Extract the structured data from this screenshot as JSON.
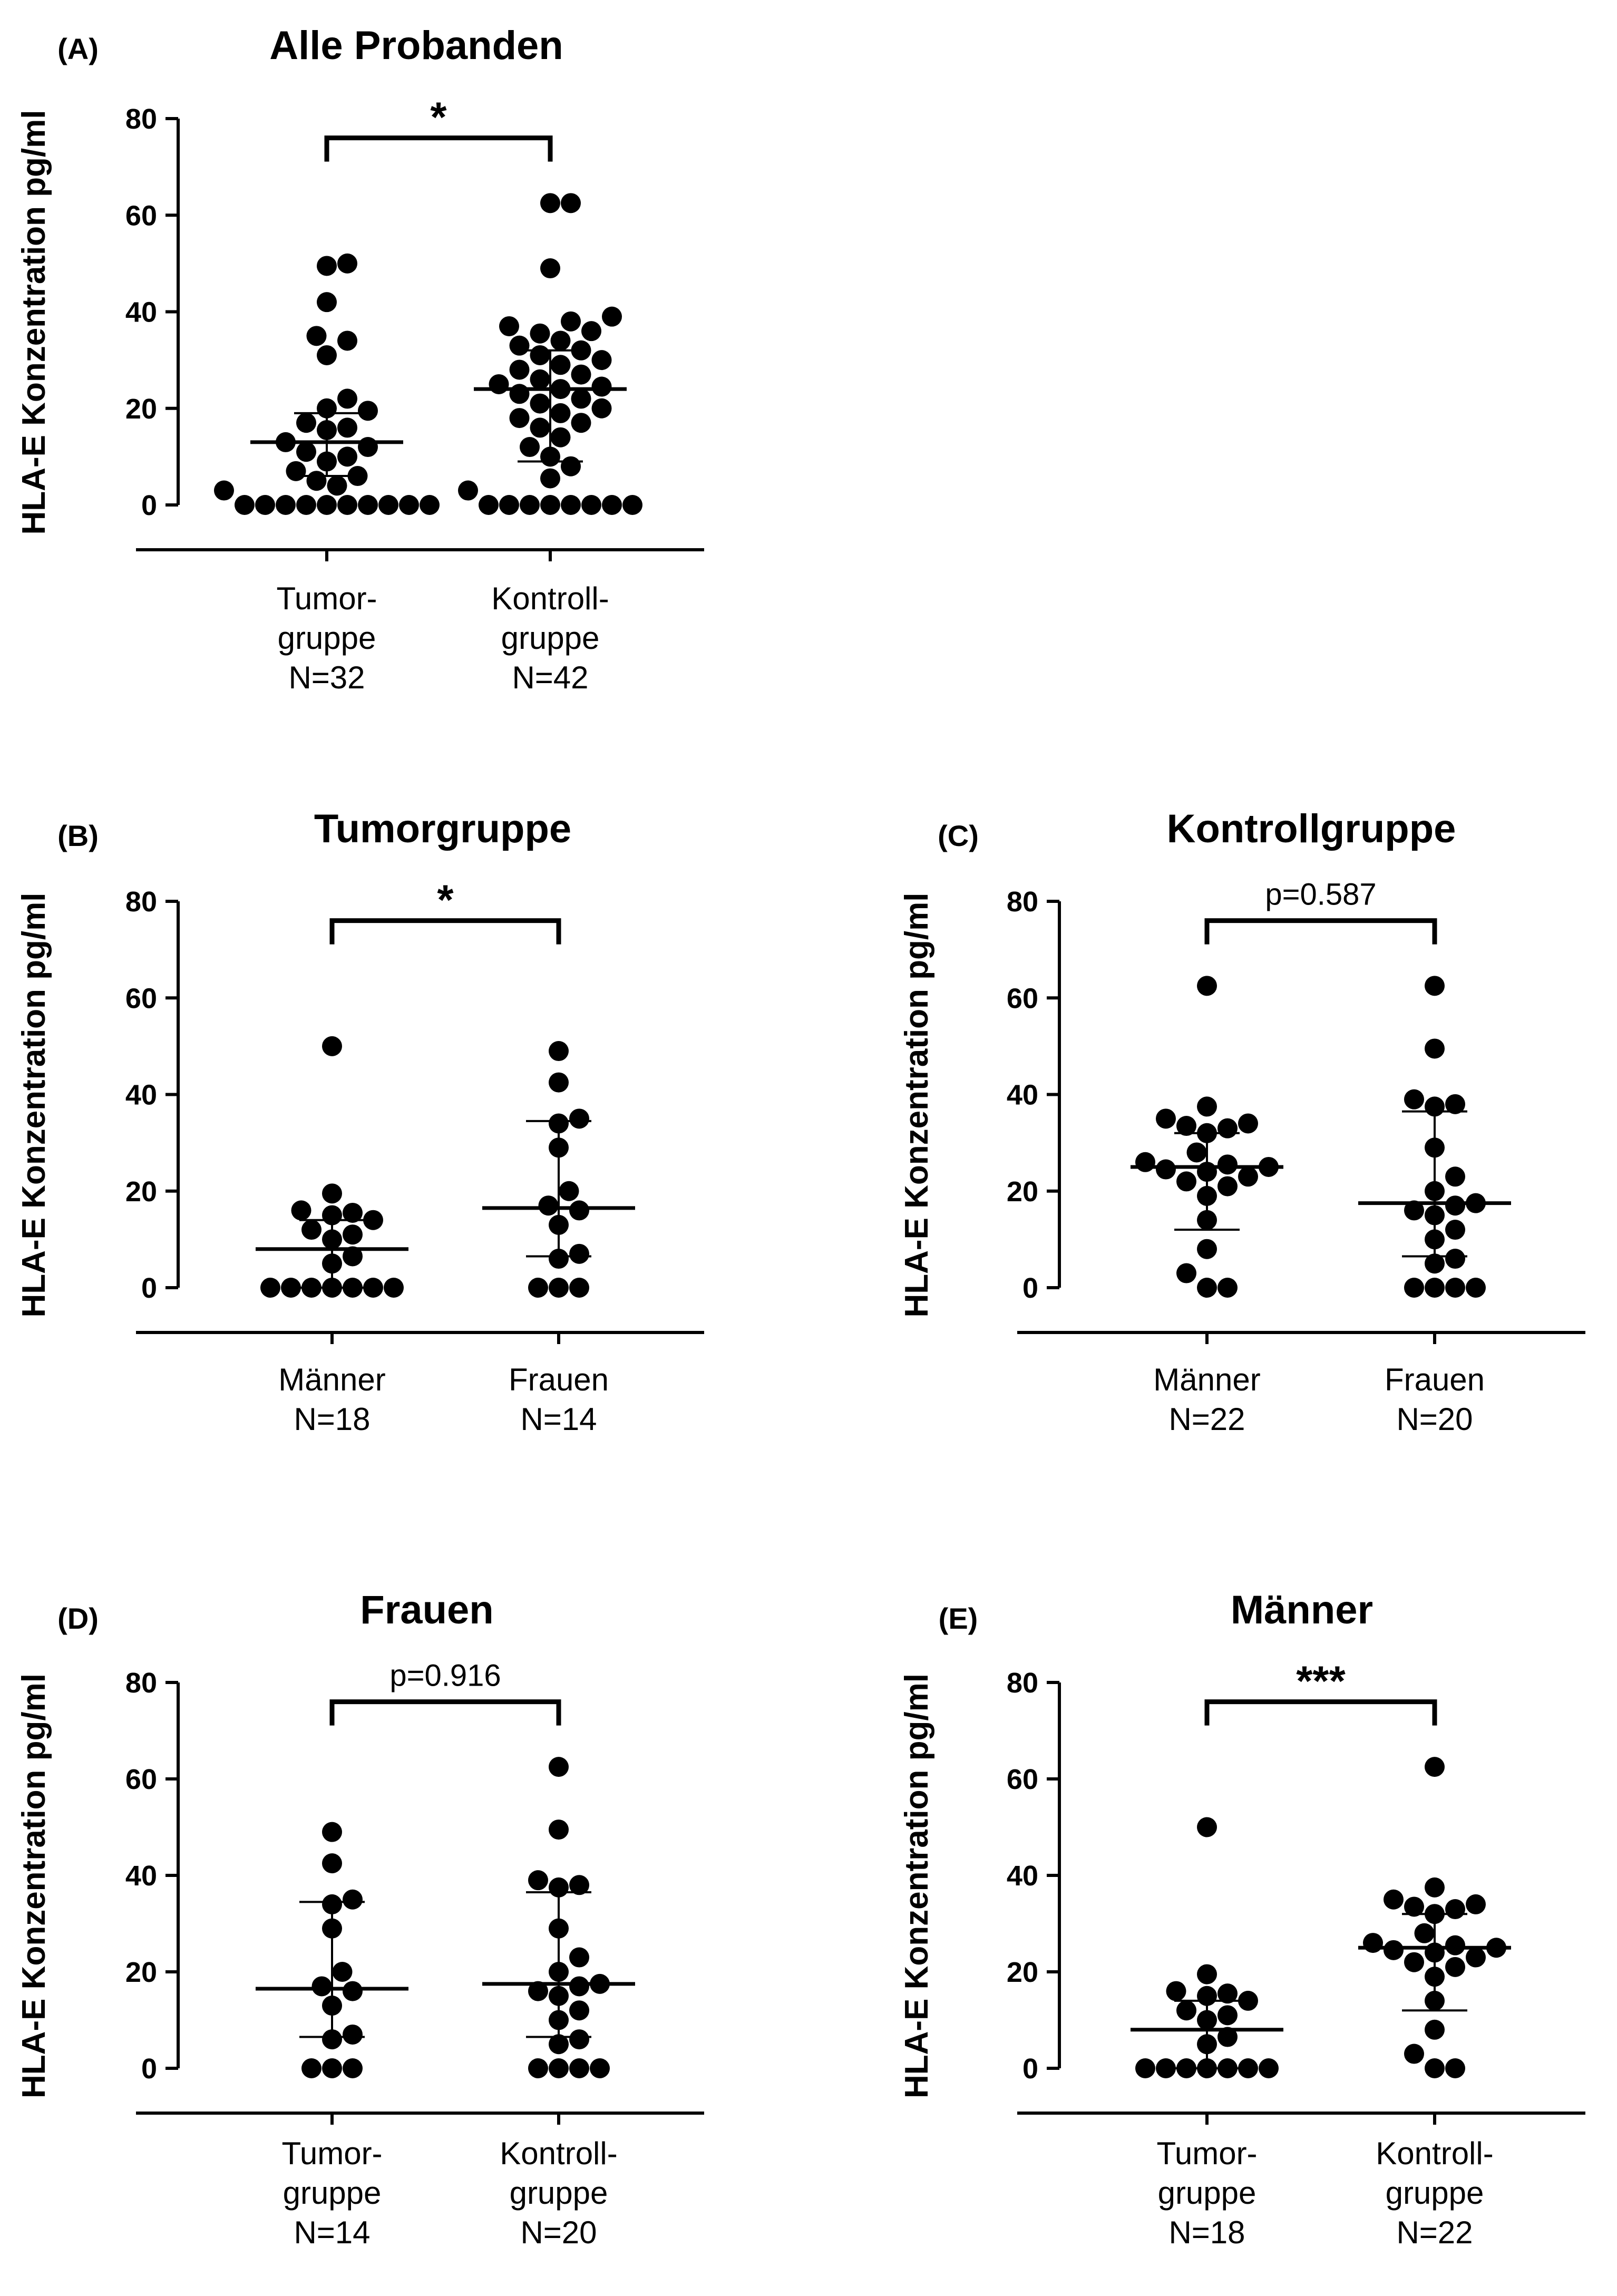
{
  "chart_data": [
    {
      "type": "scatter",
      "panel_label": "(A)",
      "title": "Alle Probanden",
      "ylabel": "HLA-E Konzentration pg/ml",
      "ylim": [
        0,
        80
      ],
      "yticks": [
        0,
        20,
        40,
        60,
        80
      ],
      "comparison": {
        "label": "*",
        "kind": "star"
      },
      "groups": [
        {
          "name": "Tumorgruppe",
          "label_lines": [
            "Tumor-",
            "gruppe",
            "N=32"
          ],
          "median": 13,
          "q1": 6,
          "q3": 19,
          "values": [
            50,
            49.5,
            42,
            35,
            34,
            31,
            22,
            20,
            19.5,
            17,
            16,
            15.5,
            13,
            12,
            11,
            10,
            9,
            7,
            6,
            5,
            4,
            3,
            0,
            0,
            0,
            0,
            0,
            0,
            0,
            0,
            0,
            0
          ]
        },
        {
          "name": "Kontrollgruppe",
          "label_lines": [
            "Kontroll-",
            "gruppe",
            "N=42"
          ],
          "median": 24,
          "q1": 9,
          "q3": 32,
          "values": [
            62.5,
            62.5,
            49,
            39,
            38,
            37,
            36,
            35.5,
            34,
            33,
            32,
            31,
            30,
            29,
            28,
            27,
            26,
            25,
            24.5,
            24,
            23,
            22,
            21,
            20,
            19,
            18,
            17,
            16,
            14,
            12,
            10,
            8,
            5.5,
            3,
            0,
            0,
            0,
            0,
            0,
            0,
            0,
            0
          ]
        }
      ]
    },
    {
      "type": "scatter",
      "panel_label": "(B)",
      "title": "Tumorgruppe",
      "ylabel": "HLA-E Konzentration pg/ml",
      "ylim": [
        0,
        80
      ],
      "yticks": [
        0,
        20,
        40,
        60,
        80
      ],
      "comparison": {
        "label": "*",
        "kind": "star"
      },
      "groups": [
        {
          "name": "Männer",
          "label_lines": [
            "Männer",
            "N=18"
          ],
          "median": 8,
          "q1": 0,
          "q3": 14,
          "values": [
            50,
            19.5,
            16,
            15.5,
            15,
            14,
            12,
            11,
            10,
            6.5,
            5,
            0,
            0,
            0,
            0,
            0,
            0,
            0
          ]
        },
        {
          "name": "Frauen",
          "label_lines": [
            "Frauen",
            "N=14"
          ],
          "median": 16.5,
          "q1": 6.5,
          "q3": 34.5,
          "values": [
            49,
            42.5,
            35,
            34,
            29,
            20,
            17,
            16,
            13,
            7,
            6,
            0,
            0,
            0
          ]
        }
      ]
    },
    {
      "type": "scatter",
      "panel_label": "(C)",
      "title": "Kontrollgruppe",
      "ylabel": "HLA-E Konzentration pg/ml",
      "ylim": [
        0,
        80
      ],
      "yticks": [
        0,
        20,
        40,
        60,
        80
      ],
      "comparison": {
        "label": "p=0.587",
        "kind": "text"
      },
      "groups": [
        {
          "name": "Männer",
          "label_lines": [
            "Männer",
            "N=22"
          ],
          "median": 25,
          "q1": 12,
          "q3": 32,
          "values": [
            62.5,
            37.5,
            35,
            34,
            33.5,
            33,
            32,
            28,
            26,
            25.5,
            25,
            24.5,
            24,
            23,
            22,
            21,
            19,
            14,
            8,
            3,
            0,
            0
          ]
        },
        {
          "name": "Frauen",
          "label_lines": [
            "Frauen",
            "N=20"
          ],
          "median": 17.5,
          "q1": 6.5,
          "q3": 36.5,
          "values": [
            62.5,
            49.5,
            39,
            38,
            37.5,
            29,
            23,
            20,
            17.5,
            17,
            16,
            15,
            12,
            10,
            6,
            5,
            0,
            0,
            0,
            0
          ]
        }
      ]
    },
    {
      "type": "scatter",
      "panel_label": "(D)",
      "title": "Frauen",
      "ylabel": "HLA-E Konzentration pg/ml",
      "ylim": [
        0,
        80
      ],
      "yticks": [
        0,
        20,
        40,
        60,
        80
      ],
      "comparison": {
        "label": "p=0.916",
        "kind": "text"
      },
      "groups": [
        {
          "name": "Tumorgruppe",
          "label_lines": [
            "Tumor-",
            "gruppe",
            "N=14"
          ],
          "median": 16.5,
          "q1": 6.5,
          "q3": 34.5,
          "values": [
            49,
            42.5,
            35,
            34,
            29,
            20,
            17,
            16,
            13,
            7,
            6,
            0,
            0,
            0
          ]
        },
        {
          "name": "Kontrollgruppe",
          "label_lines": [
            "Kontroll-",
            "gruppe",
            "N=20"
          ],
          "median": 17.5,
          "q1": 6.5,
          "q3": 36.5,
          "values": [
            62.5,
            49.5,
            39,
            38,
            37.5,
            29,
            23,
            20,
            17.5,
            17,
            16,
            15,
            12,
            10,
            6,
            5,
            0,
            0,
            0,
            0
          ]
        }
      ]
    },
    {
      "type": "scatter",
      "panel_label": "(E)",
      "title": "Männer",
      "ylabel": "HLA-E Konzentration pg/ml",
      "ylim": [
        0,
        80
      ],
      "yticks": [
        0,
        20,
        40,
        60,
        80
      ],
      "comparison": {
        "label": "***",
        "kind": "star"
      },
      "groups": [
        {
          "name": "Tumorgruppe",
          "label_lines": [
            "Tumor-",
            "gruppe",
            "N=18"
          ],
          "median": 8,
          "q1": 0,
          "q3": 14,
          "values": [
            50,
            19.5,
            16,
            15.5,
            15,
            14,
            12,
            11,
            10,
            6.5,
            5,
            0,
            0,
            0,
            0,
            0,
            0,
            0
          ]
        },
        {
          "name": "Kontrollgruppe",
          "label_lines": [
            "Kontroll-",
            "gruppe",
            "N=22"
          ],
          "median": 25,
          "q1": 12,
          "q3": 32,
          "values": [
            62.5,
            37.5,
            35,
            34,
            33.5,
            33,
            32,
            28,
            26,
            25.5,
            25,
            24.5,
            24,
            23,
            22,
            21,
            19,
            14,
            8,
            3,
            0,
            0
          ]
        }
      ]
    }
  ]
}
